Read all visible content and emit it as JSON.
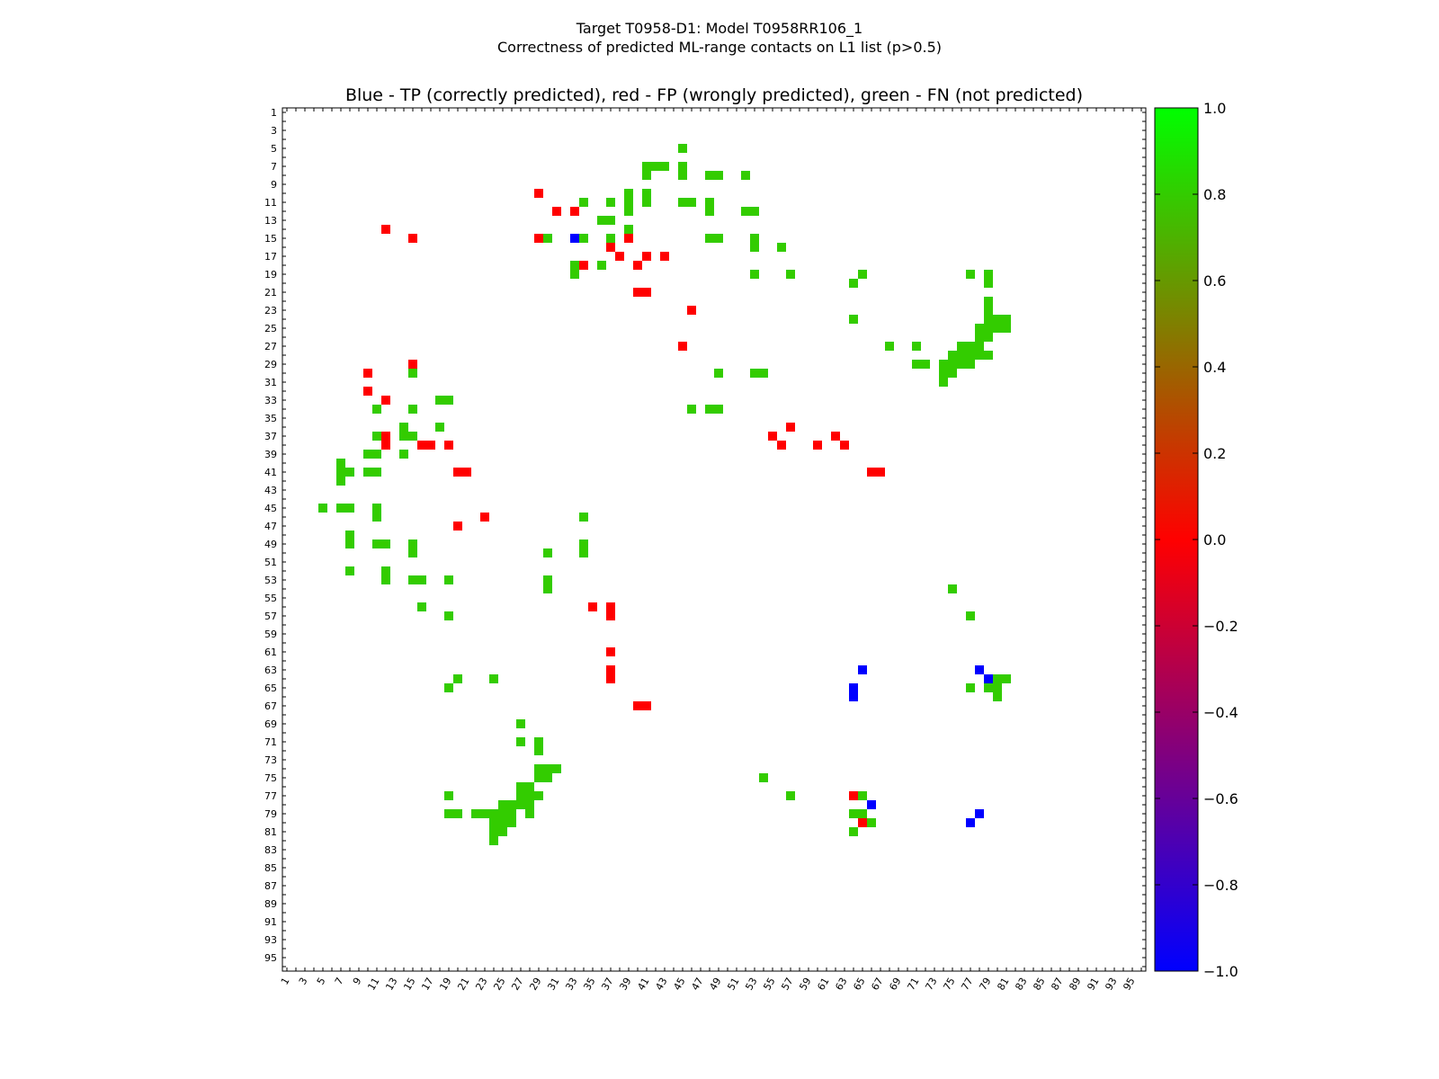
{
  "figure": {
    "title_line1": "Target T0958-D1: Model T0958RR106_1",
    "title_line2": "Correctness of predicted ML-range contacts on L1 list (p>0.5)"
  },
  "chart_data": {
    "type": "heatmap",
    "title": "Blue - TP (correctly predicted), red - FP (wrongly predicted), green - FN (not predicted)",
    "xlabel": "",
    "ylabel": "",
    "x_range": [
      1,
      96
    ],
    "y_range": [
      1,
      96
    ],
    "y_inverted": true,
    "tick_labels": [
      "1",
      "3",
      "5",
      "7",
      "9",
      "11",
      "13",
      "15",
      "17",
      "19",
      "21",
      "23",
      "25",
      "27",
      "29",
      "31",
      "33",
      "35",
      "37",
      "39",
      "41",
      "43",
      "45",
      "47",
      "49",
      "51",
      "53",
      "55",
      "57",
      "59",
      "61",
      "63",
      "65",
      "67",
      "69",
      "71",
      "73",
      "75",
      "77",
      "79",
      "81",
      "83",
      "85",
      "87",
      "89",
      "91",
      "93",
      "95"
    ],
    "colorbar": {
      "min": -1.0,
      "max": 1.0,
      "ticks": [
        "1.0",
        "0.8",
        "0.6",
        "0.4",
        "0.2",
        "0.0",
        "−0.2",
        "−0.4",
        "−0.6",
        "−0.8",
        "−1.0"
      ],
      "stops": [
        {
          "v": -1.0,
          "color": "#0000ff"
        },
        {
          "v": 0.0,
          "color": "#ff0000"
        },
        {
          "v": 1.0,
          "color": "#00ff00"
        }
      ]
    },
    "legend": {
      "tp_color": "#0000ff",
      "fp_color": "#ff0000",
      "fn_color": "#33cc00"
    },
    "cells": {
      "TP": [
        [
          33,
          15
        ],
        [
          78,
          79
        ],
        [
          77,
          80
        ],
        [
          64,
          65
        ],
        [
          65,
          63
        ],
        [
          66,
          78
        ],
        [
          64,
          66
        ],
        [
          79,
          64
        ],
        [
          78,
          63
        ]
      ],
      "FP": [
        [
          29,
          10
        ],
        [
          31,
          12
        ],
        [
          12,
          14
        ],
        [
          15,
          15
        ],
        [
          33,
          15
        ],
        [
          37,
          16
        ],
        [
          39,
          15
        ],
        [
          12,
          37
        ],
        [
          40,
          21
        ],
        [
          41,
          21
        ],
        [
          43,
          17
        ],
        [
          34,
          18
        ],
        [
          38,
          17
        ],
        [
          40,
          18
        ],
        [
          41,
          17
        ],
        [
          46,
          23
        ],
        [
          45,
          27
        ],
        [
          57,
          36
        ],
        [
          56,
          38
        ],
        [
          55,
          37
        ],
        [
          60,
          38
        ],
        [
          62,
          37
        ],
        [
          63,
          38
        ],
        [
          10,
          30
        ],
        [
          10,
          32
        ],
        [
          12,
          37
        ],
        [
          12,
          38
        ],
        [
          12,
          33
        ],
        [
          15,
          29
        ],
        [
          16,
          38
        ],
        [
          17,
          38
        ],
        [
          19,
          38
        ],
        [
          20,
          41
        ],
        [
          21,
          41
        ],
        [
          20,
          47
        ],
        [
          23,
          46
        ],
        [
          66,
          41
        ],
        [
          67,
          41
        ],
        [
          29,
          15
        ],
        [
          33,
          12
        ],
        [
          35,
          56
        ],
        [
          37,
          56
        ],
        [
          37,
          57
        ],
        [
          37,
          61
        ],
        [
          37,
          63
        ],
        [
          37,
          64
        ],
        [
          40,
          67
        ],
        [
          41,
          67
        ],
        [
          65,
          80
        ],
        [
          64,
          77
        ]
      ],
      "FN": [
        [
          45,
          5
        ],
        [
          41,
          7
        ],
        [
          42,
          7
        ],
        [
          43,
          7
        ],
        [
          41,
          8
        ],
        [
          45,
          7
        ],
        [
          45,
          8
        ],
        [
          48,
          8
        ],
        [
          49,
          8
        ],
        [
          52,
          8
        ],
        [
          39,
          11
        ],
        [
          41,
          11
        ],
        [
          41,
          10
        ],
        [
          39,
          10
        ],
        [
          45,
          11
        ],
        [
          46,
          11
        ],
        [
          48,
          11
        ],
        [
          48,
          12
        ],
        [
          52,
          12
        ],
        [
          53,
          12
        ],
        [
          34,
          11
        ],
        [
          37,
          11
        ],
        [
          39,
          12
        ],
        [
          36,
          13
        ],
        [
          37,
          13
        ],
        [
          39,
          14
        ],
        [
          37,
          15
        ],
        [
          30,
          15
        ],
        [
          34,
          15
        ],
        [
          48,
          15
        ],
        [
          49,
          15
        ],
        [
          53,
          15
        ],
        [
          53,
          16
        ],
        [
          56,
          16
        ],
        [
          33,
          18
        ],
        [
          33,
          19
        ],
        [
          36,
          18
        ],
        [
          53,
          19
        ],
        [
          57,
          19
        ],
        [
          64,
          20
        ],
        [
          65,
          19
        ],
        [
          77,
          19
        ],
        [
          79,
          19
        ],
        [
          79,
          20
        ],
        [
          64,
          24
        ],
        [
          79,
          22
        ],
        [
          79,
          23
        ],
        [
          79,
          24
        ],
        [
          80,
          24
        ],
        [
          81,
          24
        ],
        [
          79,
          25
        ],
        [
          80,
          25
        ],
        [
          81,
          25
        ],
        [
          78,
          25
        ],
        [
          78,
          26
        ],
        [
          79,
          26
        ],
        [
          68,
          27
        ],
        [
          71,
          27
        ],
        [
          76,
          27
        ],
        [
          77,
          27
        ],
        [
          78,
          27
        ],
        [
          76,
          28
        ],
        [
          77,
          28
        ],
        [
          78,
          28
        ],
        [
          79,
          28
        ],
        [
          75,
          28
        ],
        [
          71,
          29
        ],
        [
          72,
          29
        ],
        [
          74,
          29
        ],
        [
          75,
          29
        ],
        [
          76,
          29
        ],
        [
          77,
          29
        ],
        [
          74,
          30
        ],
        [
          75,
          30
        ],
        [
          74,
          31
        ],
        [
          49,
          30
        ],
        [
          53,
          30
        ],
        [
          54,
          30
        ],
        [
          15,
          30
        ],
        [
          18,
          33
        ],
        [
          19,
          33
        ],
        [
          11,
          34
        ],
        [
          15,
          34
        ],
        [
          46,
          34
        ],
        [
          48,
          34
        ],
        [
          49,
          34
        ],
        [
          18,
          36
        ],
        [
          11,
          37
        ],
        [
          14,
          36
        ],
        [
          14,
          37
        ],
        [
          15,
          37
        ],
        [
          10,
          39
        ],
        [
          11,
          39
        ],
        [
          14,
          39
        ],
        [
          7,
          40
        ],
        [
          7,
          41
        ],
        [
          8,
          41
        ],
        [
          10,
          41
        ],
        [
          11,
          41
        ],
        [
          7,
          42
        ],
        [
          5,
          45
        ],
        [
          7,
          45
        ],
        [
          8,
          45
        ],
        [
          11,
          45
        ],
        [
          11,
          46
        ],
        [
          34,
          46
        ],
        [
          8,
          48
        ],
        [
          8,
          49
        ],
        [
          11,
          49
        ],
        [
          12,
          49
        ],
        [
          15,
          49
        ],
        [
          15,
          50
        ],
        [
          30,
          50
        ],
        [
          34,
          49
        ],
        [
          34,
          50
        ],
        [
          8,
          52
        ],
        [
          12,
          52
        ],
        [
          12,
          53
        ],
        [
          15,
          53
        ],
        [
          16,
          53
        ],
        [
          19,
          53
        ],
        [
          30,
          53
        ],
        [
          30,
          54
        ],
        [
          75,
          54
        ],
        [
          16,
          56
        ],
        [
          19,
          57
        ],
        [
          77,
          57
        ],
        [
          20,
          64
        ],
        [
          24,
          64
        ],
        [
          19,
          65
        ],
        [
          77,
          65
        ],
        [
          79,
          64
        ],
        [
          80,
          64
        ],
        [
          81,
          64
        ],
        [
          79,
          65
        ],
        [
          80,
          65
        ],
        [
          80,
          66
        ],
        [
          27,
          69
        ],
        [
          27,
          71
        ],
        [
          29,
          71
        ],
        [
          29,
          72
        ],
        [
          29,
          74
        ],
        [
          30,
          74
        ],
        [
          31,
          74
        ],
        [
          29,
          75
        ],
        [
          30,
          75
        ],
        [
          54,
          75
        ],
        [
          27,
          76
        ],
        [
          28,
          76
        ],
        [
          27,
          77
        ],
        [
          28,
          77
        ],
        [
          29,
          77
        ],
        [
          19,
          77
        ],
        [
          57,
          77
        ],
        [
          65,
          77
        ],
        [
          26,
          78
        ],
        [
          27,
          78
        ],
        [
          28,
          78
        ],
        [
          25,
          78
        ],
        [
          19,
          79
        ],
        [
          20,
          79
        ],
        [
          22,
          79
        ],
        [
          23,
          79
        ],
        [
          24,
          79
        ],
        [
          25,
          79
        ],
        [
          26,
          79
        ],
        [
          28,
          79
        ],
        [
          25,
          80
        ],
        [
          26,
          80
        ],
        [
          24,
          80
        ],
        [
          24,
          81
        ],
        [
          25,
          81
        ],
        [
          64,
          79
        ],
        [
          65,
          79
        ],
        [
          65,
          80
        ],
        [
          66,
          80
        ],
        [
          64,
          81
        ],
        [
          24,
          82
        ]
      ]
    }
  }
}
